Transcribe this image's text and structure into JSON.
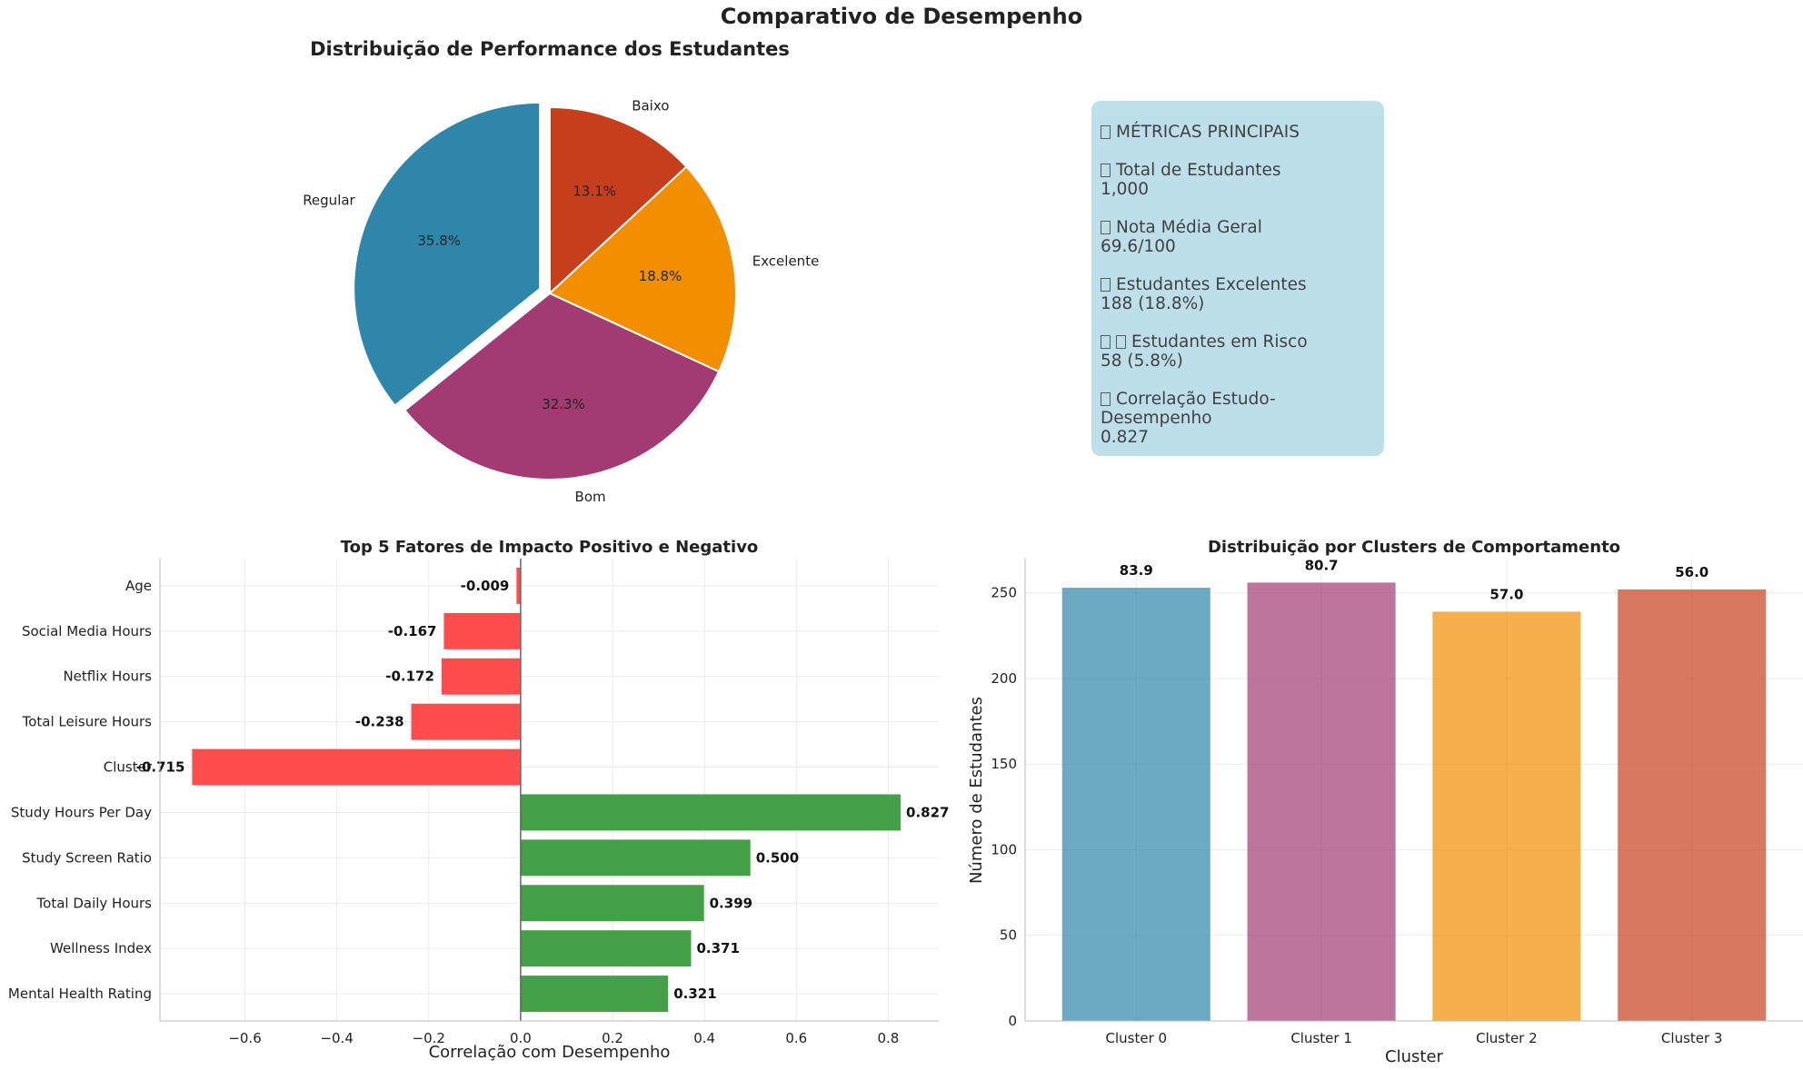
{
  "suptitle": "Comparativo de Desempenho",
  "colors": {
    "regular": "#2e86ab",
    "bom": "#a23b72",
    "excelente": "#f18f01",
    "baixo": "#c73e1d",
    "negative_bar": "#ff4d4d",
    "positive_bar": "#43a047",
    "metrics_box": "#add8e6"
  },
  "metrics": {
    "title": "MÉTRICAS PRINCIPAIS",
    "items": [
      {
        "label": "Total de Estudantes",
        "value": "1,000",
        "icon": "people-icon"
      },
      {
        "label": "Nota Média Geral",
        "value": "69.6/100",
        "icon": "chart-icon"
      },
      {
        "label": "Estudantes Excelentes",
        "value": "188 (18.8%)",
        "icon": "star-icon"
      },
      {
        "label": "Estudantes em Risco",
        "value": "58 (5.8%)",
        "icon": "warning-icon"
      },
      {
        "label": "Correlação Estudo-Desempenho",
        "value": "0.827",
        "icon": "link-icon"
      }
    ]
  },
  "chart_data": [
    {
      "type": "pie",
      "title": "Distribuição de Performance dos Estudantes",
      "labels": [
        "Baixo",
        "Excelente",
        "Bom",
        "Regular"
      ],
      "values": [
        13.1,
        18.8,
        32.3,
        35.8
      ],
      "autopct": [
        "13.1%",
        "18.8%",
        "32.3%",
        "35.8%"
      ],
      "exploded": [
        "Regular"
      ],
      "start": "top, clockwise"
    },
    {
      "type": "bar",
      "orientation": "horizontal",
      "title": "Top 5 Fatores de Impacto Positivo e Negativo",
      "xlabel": "Correlação com Desempenho",
      "ylabel": "",
      "categories": [
        "Age",
        "Social Media Hours",
        "Netflix Hours",
        "Total Leisure Hours",
        "Cluster",
        "Study Hours Per Day",
        "Study Screen Ratio",
        "Total Daily Hours",
        "Wellness Index",
        "Mental Health Rating"
      ],
      "values": [
        -0.009,
        -0.167,
        -0.172,
        -0.238,
        -0.715,
        0.827,
        0.5,
        0.399,
        0.371,
        0.321
      ],
      "value_labels": [
        "-0.009",
        "-0.167",
        "-0.172",
        "-0.238",
        "-0.715",
        "0.827",
        "0.500",
        "0.399",
        "0.371",
        "0.321"
      ],
      "xlim": [
        -0.785,
        0.91
      ],
      "xticks": [
        -0.6,
        -0.4,
        -0.2,
        0.0,
        0.2,
        0.4,
        0.6,
        0.8
      ],
      "xtick_labels": [
        "−0.6",
        "−0.4",
        "−0.2",
        "0.0",
        "0.2",
        "0.4",
        "0.6",
        "0.8"
      ],
      "grid": true
    },
    {
      "type": "bar",
      "title": "Distribuição por Clusters de Comportamento",
      "xlabel": "Cluster",
      "ylabel": "Número de Estudantes",
      "categories": [
        "Cluster 0",
        "Cluster 1",
        "Cluster 2",
        "Cluster 3"
      ],
      "values": [
        253,
        256,
        239,
        252
      ],
      "bar_labels": [
        "83.9",
        "80.7",
        "57.0",
        "56.0"
      ],
      "ylim": [
        0,
        270
      ],
      "yticks": [
        0,
        50,
        100,
        150,
        200,
        250
      ],
      "grid": true
    }
  ]
}
